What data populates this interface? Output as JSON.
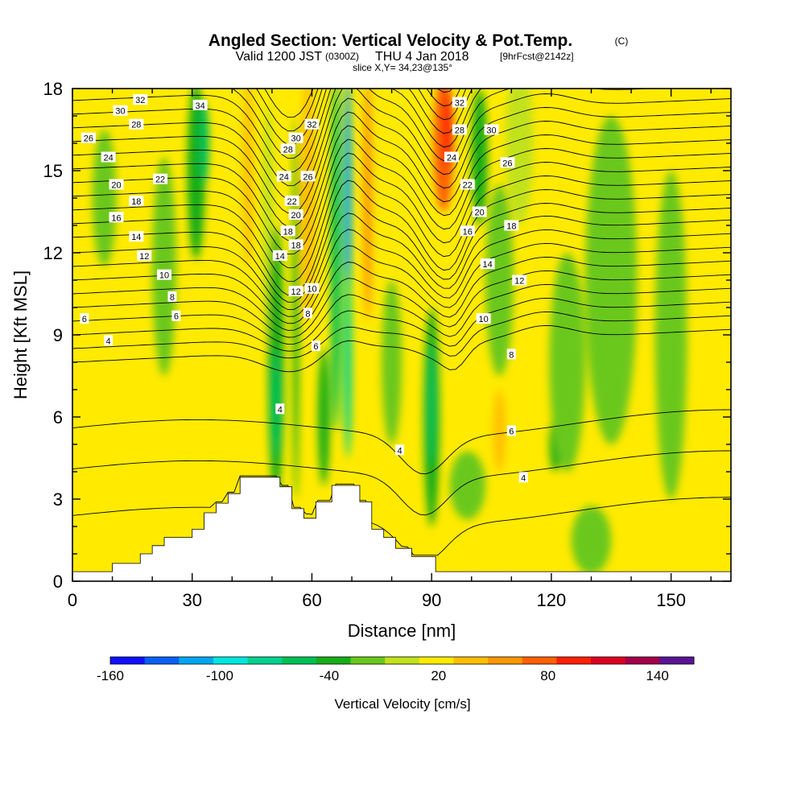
{
  "header": {
    "title": "Angled Section: Vertical Velocity & Pot.Temp.",
    "title_mark": "(C)",
    "valid_prefix": "Valid 1200 JST",
    "valid_utc": "(0300Z)",
    "valid_date": "THU 4 Jan 2018",
    "forecast": "[9hrFcst@2142z]",
    "slice": "slice X,Y= 34,23@135°"
  },
  "chart_data": {
    "type": "heatmap",
    "title": "Angled Section: Vertical Velocity & Pot.Temp.",
    "xlabel": "Distance [nm]",
    "ylabel": "Height [Kft MSL]",
    "xlim": [
      0,
      165
    ],
    "ylim": [
      0,
      18
    ],
    "x_ticks": [
      0,
      30,
      60,
      90,
      120,
      150
    ],
    "y_ticks": [
      0,
      3,
      6,
      9,
      12,
      15,
      18
    ],
    "grid": false,
    "colorbar": {
      "label": "Vertical Velocity [cm/s]",
      "tick_labels": [
        "-160",
        "-100",
        "-40",
        "20",
        "80",
        "140"
      ],
      "tick_values": [
        -160,
        -100,
        -40,
        20,
        80,
        140
      ],
      "levels": [
        -160,
        -140,
        -120,
        -100,
        -80,
        -60,
        -40,
        -20,
        0,
        20,
        40,
        60,
        80,
        100,
        120,
        140,
        160
      ],
      "colors": [
        "#1010ff",
        "#0a5ff5",
        "#00a8ef",
        "#00e6e0",
        "#00d28e",
        "#00c056",
        "#18ad18",
        "#6ac81c",
        "#c2e21a",
        "#ffea00",
        "#ffbf00",
        "#ff9800",
        "#ff6000",
        "#ff2000",
        "#dc0022",
        "#a3004a",
        "#5a1494"
      ]
    },
    "background_color": "#ffea00",
    "velocity_features": [
      {
        "x": 12,
        "y": 4.5,
        "w": 7,
        "h": 9,
        "value": 30
      },
      {
        "x": 13,
        "y": 2.6,
        "w": 8,
        "h": 3,
        "value": 30
      },
      {
        "x": 23,
        "y": 11.5,
        "w": 6,
        "h": 8,
        "value": -10
      },
      {
        "x": 8,
        "y": 14,
        "w": 6,
        "h": 5,
        "value": -10
      },
      {
        "x": 31,
        "y": 15,
        "w": 4.5,
        "h": 6.5,
        "value": -30
      },
      {
        "x": 33,
        "y": 16,
        "w": 2.5,
        "h": 3,
        "value": -45
      },
      {
        "x": 44,
        "y": 15,
        "w": 2.5,
        "h": 7,
        "value": 40
      },
      {
        "x": 49,
        "y": 13,
        "w": 3,
        "h": 9,
        "value": 10
      },
      {
        "x": 51,
        "y": 8,
        "w": 4,
        "h": 10,
        "value": -30
      },
      {
        "x": 51,
        "y": 6.5,
        "w": 2.5,
        "h": 4,
        "value": -50
      },
      {
        "x": 56,
        "y": 10,
        "w": 1.5,
        "h": 14,
        "value": -35
      },
      {
        "x": 59,
        "y": 14,
        "w": 3.5,
        "h": 9,
        "value": 50
      },
      {
        "x": 63,
        "y": 6,
        "w": 3,
        "h": 5,
        "value": -30
      },
      {
        "x": 66,
        "y": 12,
        "w": 2.5,
        "h": 13,
        "value": -50
      },
      {
        "x": 69,
        "y": 14,
        "w": 2,
        "h": 9,
        "value": -110
      },
      {
        "x": 69,
        "y": 8,
        "w": 2,
        "h": 7,
        "value": -70
      },
      {
        "x": 74,
        "y": 14,
        "w": 2.2,
        "h": 9,
        "value": 70
      },
      {
        "x": 80,
        "y": 8,
        "w": 5,
        "h": 6,
        "value": -10
      },
      {
        "x": 90,
        "y": 6,
        "w": 4,
        "h": 8,
        "value": -25
      },
      {
        "x": 90,
        "y": 6.5,
        "w": 2,
        "h": 4.5,
        "value": -50
      },
      {
        "x": 93,
        "y": 16,
        "w": 5,
        "h": 5,
        "value": 80
      },
      {
        "x": 94,
        "y": 16.5,
        "w": 2.5,
        "h": 3,
        "value": 110
      },
      {
        "x": 99,
        "y": 3.5,
        "w": 9,
        "h": 2.5,
        "value": -10
      },
      {
        "x": 102,
        "y": 15.5,
        "w": 4,
        "h": 5,
        "value": -35
      },
      {
        "x": 107,
        "y": 5.5,
        "w": 3,
        "h": 3,
        "value": 50
      },
      {
        "x": 107,
        "y": 11,
        "w": 7,
        "h": 7,
        "value": -5
      },
      {
        "x": 112,
        "y": 16,
        "w": 7,
        "h": 6,
        "value": 10
      },
      {
        "x": 121,
        "y": 5,
        "w": 3,
        "h": 2,
        "value": -40
      },
      {
        "x": 124,
        "y": 8,
        "w": 9,
        "h": 8,
        "value": -5
      },
      {
        "x": 135,
        "y": 11,
        "w": 13,
        "h": 12,
        "value": -5
      },
      {
        "x": 130,
        "y": 1.5,
        "w": 10,
        "h": 2.5,
        "value": -5
      },
      {
        "x": 150,
        "y": 9,
        "w": 8,
        "h": 12,
        "value": -5
      }
    ],
    "terrain": [
      [
        0,
        0.35
      ],
      [
        10,
        0.35
      ],
      [
        10,
        0.65
      ],
      [
        17,
        0.65
      ],
      [
        17,
        1.0
      ],
      [
        20,
        1.0
      ],
      [
        20,
        1.3
      ],
      [
        23,
        1.3
      ],
      [
        23,
        1.6
      ],
      [
        30,
        1.6
      ],
      [
        30,
        1.9
      ],
      [
        33,
        1.9
      ],
      [
        33,
        2.5
      ],
      [
        36,
        2.5
      ],
      [
        36,
        2.85
      ],
      [
        39,
        2.85
      ],
      [
        39,
        3.2
      ],
      [
        42,
        3.2
      ],
      [
        42,
        3.8
      ],
      [
        52,
        3.8
      ],
      [
        52,
        3.45
      ],
      [
        55,
        3.45
      ],
      [
        55,
        2.65
      ],
      [
        58,
        2.65
      ],
      [
        58,
        2.3
      ],
      [
        61,
        2.3
      ],
      [
        61,
        2.9
      ],
      [
        65,
        2.9
      ],
      [
        65,
        3.5
      ],
      [
        72,
        3.5
      ],
      [
        72,
        2.9
      ],
      [
        75,
        2.9
      ],
      [
        75,
        1.9
      ],
      [
        78,
        1.9
      ],
      [
        78,
        1.6
      ],
      [
        81,
        1.6
      ],
      [
        81,
        1.2
      ],
      [
        85,
        1.2
      ],
      [
        85,
        0.9
      ],
      [
        91,
        0.9
      ],
      [
        91,
        0.35
      ],
      [
        165,
        0.35
      ]
    ],
    "isentrope_interval": 0.5,
    "isentrope_base_height": 9.0,
    "contour_labels": [
      {
        "x": 17,
        "y": 17.6,
        "text": "32"
      },
      {
        "x": 12,
        "y": 17.2,
        "text": "30"
      },
      {
        "x": 16,
        "y": 16.7,
        "text": "28"
      },
      {
        "x": 4,
        "y": 16.2,
        "text": "26"
      },
      {
        "x": 9,
        "y": 15.5,
        "text": "24"
      },
      {
        "x": 22,
        "y": 14.7,
        "text": "22"
      },
      {
        "x": 11,
        "y": 14.5,
        "text": "20"
      },
      {
        "x": 16,
        "y": 13.9,
        "text": "18"
      },
      {
        "x": 11,
        "y": 13.3,
        "text": "16"
      },
      {
        "x": 16,
        "y": 12.6,
        "text": "14"
      },
      {
        "x": 18,
        "y": 11.9,
        "text": "12"
      },
      {
        "x": 23,
        "y": 11.2,
        "text": "10"
      },
      {
        "x": 25,
        "y": 10.4,
        "text": "8"
      },
      {
        "x": 26,
        "y": 9.7,
        "text": "6"
      },
      {
        "x": 3,
        "y": 9.6,
        "text": "6"
      },
      {
        "x": 9,
        "y": 8.8,
        "text": "4"
      },
      {
        "x": 32,
        "y": 17.4,
        "text": "34"
      },
      {
        "x": 54,
        "y": 15.8,
        "text": "28"
      },
      {
        "x": 53,
        "y": 14.8,
        "text": "24"
      },
      {
        "x": 55,
        "y": 13.9,
        "text": "22"
      },
      {
        "x": 54,
        "y": 12.8,
        "text": "18"
      },
      {
        "x": 52,
        "y": 11.9,
        "text": "14"
      },
      {
        "x": 60,
        "y": 16.7,
        "text": "32"
      },
      {
        "x": 56,
        "y": 16.2,
        "text": "30"
      },
      {
        "x": 59,
        "y": 14.8,
        "text": "26"
      },
      {
        "x": 56,
        "y": 13.4,
        "text": "20"
      },
      {
        "x": 56,
        "y": 12.3,
        "text": "18"
      },
      {
        "x": 56,
        "y": 10.6,
        "text": "12"
      },
      {
        "x": 60,
        "y": 10.7,
        "text": "10"
      },
      {
        "x": 59,
        "y": 9.8,
        "text": "8"
      },
      {
        "x": 61,
        "y": 8.6,
        "text": "6"
      },
      {
        "x": 52,
        "y": 6.3,
        "text": "4"
      },
      {
        "x": 82,
        "y": 4.8,
        "text": "4"
      },
      {
        "x": 97,
        "y": 17.5,
        "text": "32"
      },
      {
        "x": 97,
        "y": 16.5,
        "text": "28"
      },
      {
        "x": 95,
        "y": 15.5,
        "text": "24"
      },
      {
        "x": 99,
        "y": 14.5,
        "text": "22"
      },
      {
        "x": 102,
        "y": 13.5,
        "text": "20"
      },
      {
        "x": 99,
        "y": 12.8,
        "text": "16"
      },
      {
        "x": 105,
        "y": 16.5,
        "text": "30"
      },
      {
        "x": 109,
        "y": 15.3,
        "text": "26"
      },
      {
        "x": 110,
        "y": 13.0,
        "text": "18"
      },
      {
        "x": 104,
        "y": 11.6,
        "text": "14"
      },
      {
        "x": 112,
        "y": 11.0,
        "text": "12"
      },
      {
        "x": 103,
        "y": 9.6,
        "text": "10"
      },
      {
        "x": 110,
        "y": 8.3,
        "text": "8"
      },
      {
        "x": 110,
        "y": 5.5,
        "text": "6"
      },
      {
        "x": 113,
        "y": 3.8,
        "text": "4"
      }
    ]
  }
}
